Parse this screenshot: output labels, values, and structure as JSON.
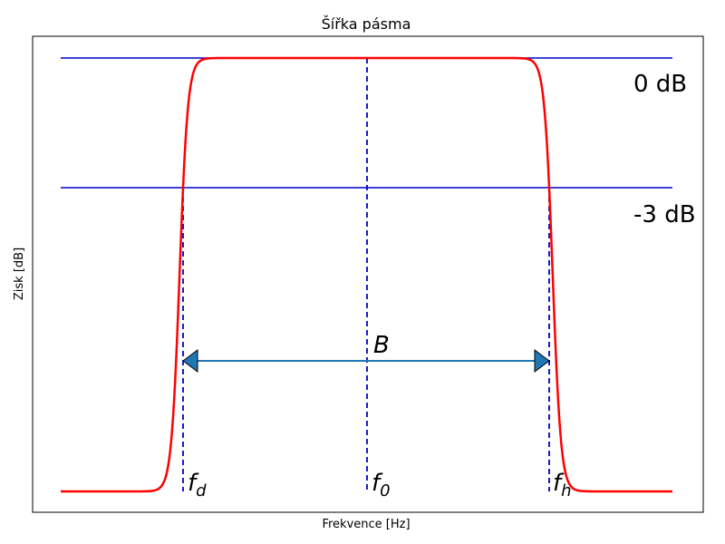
{
  "chart_data": {
    "type": "line",
    "title": "Šířka pásma",
    "xlabel": "Frekvence [Hz]",
    "ylabel": "Zisk [dB]",
    "grid": false,
    "ticks_visible": false,
    "colors": {
      "curve": "#ff0000",
      "reference_lines": "#0000cc",
      "arrow": "#1f77b4"
    },
    "reference_levels": [
      {
        "label": "0 dB",
        "value": 0
      },
      {
        "label": "-3 dB",
        "value": -3
      }
    ],
    "frequency_markers": [
      {
        "symbol": "f",
        "subscript": "d"
      },
      {
        "symbol": "f",
        "subscript": "0"
      },
      {
        "symbol": "f",
        "subscript": "h"
      }
    ],
    "bandwidth_label": "B",
    "annotations": [
      "0 dB",
      "-3 dB",
      "B",
      "fd",
      "f0",
      "fh"
    ]
  }
}
